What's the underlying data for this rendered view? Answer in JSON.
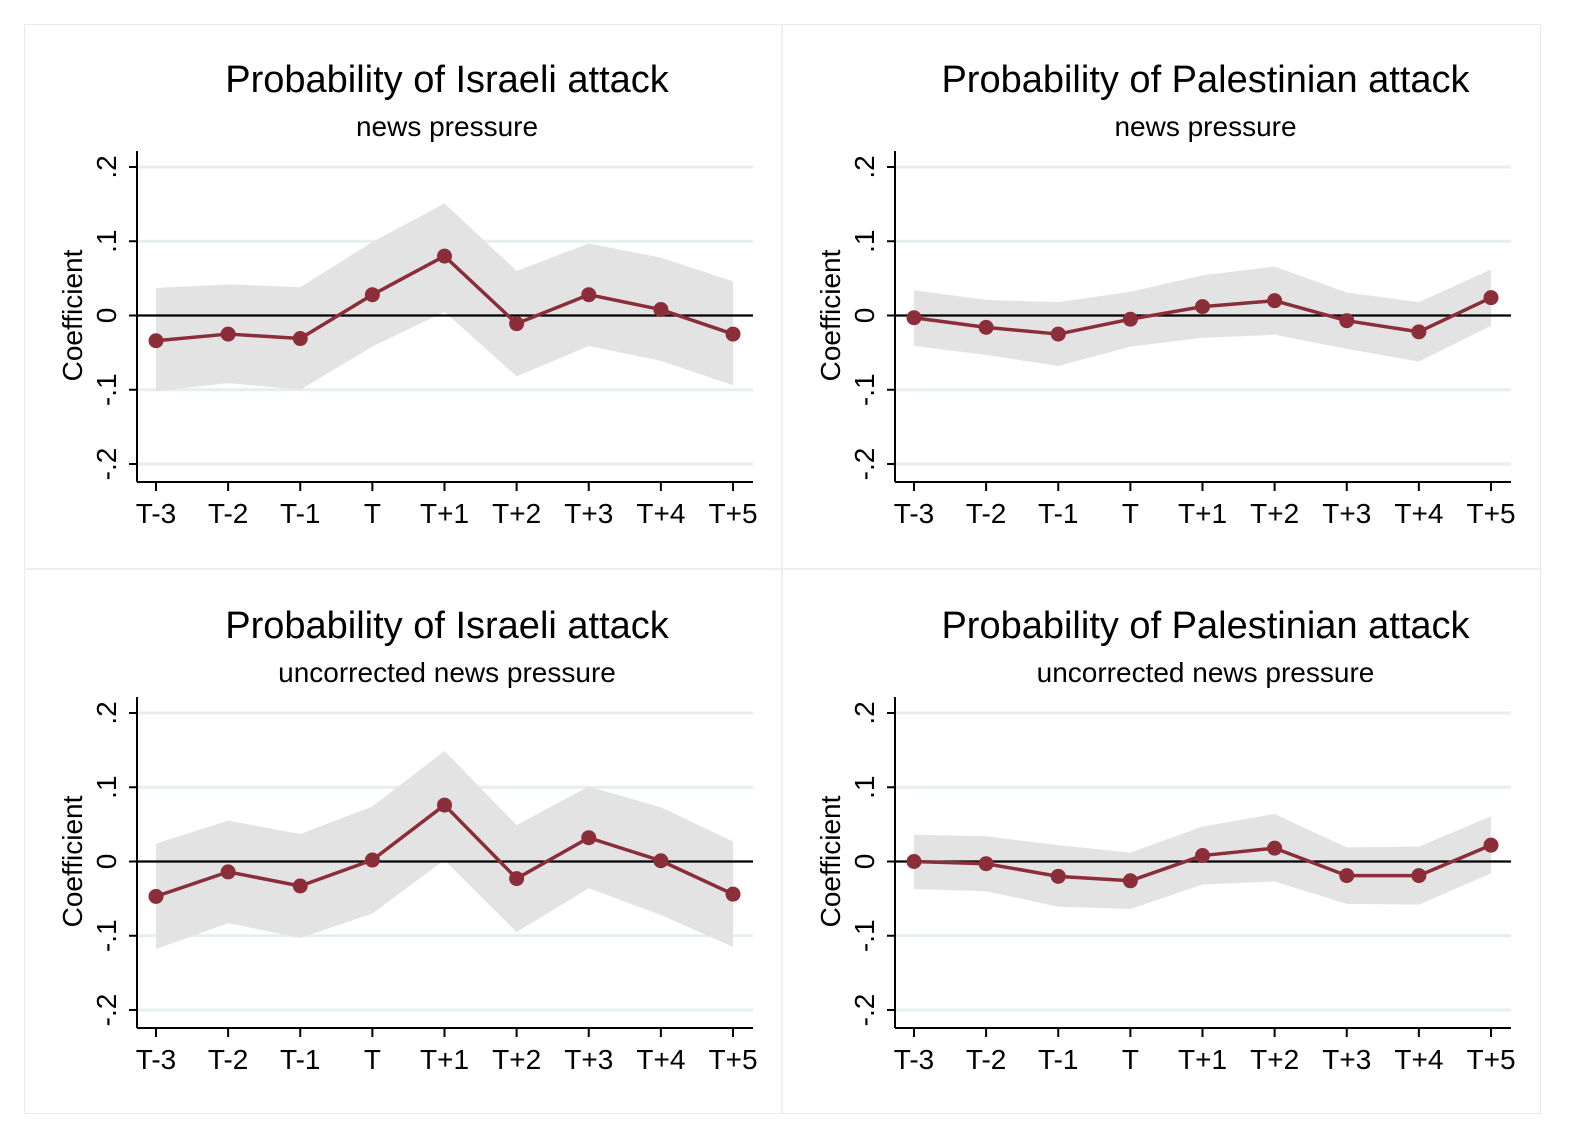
{
  "colors": {
    "line": "#8b2e3a",
    "band": "#e3e3e3",
    "grid": "#e6eef1",
    "axis": "#000000",
    "background": "#ffffff"
  },
  "chart_data": [
    {
      "type": "line",
      "title": "Probability of Israeli attack",
      "subtitle": "news pressure",
      "ylabel": "Coefficient",
      "xlabel": "",
      "categories": [
        "T-3",
        "T-2",
        "T-1",
        "T",
        "T+1",
        "T+2",
        "T+3",
        "T+4",
        "T+5"
      ],
      "ylim": [
        -0.2,
        0.2
      ],
      "yticks": [
        "-.2",
        "-.1",
        "0",
        ".1",
        ".2"
      ],
      "grid": true,
      "series": [
        {
          "values": [
            -0.034,
            -0.025,
            -0.031,
            0.028,
            0.08,
            -0.011,
            0.028,
            0.008,
            -0.025
          ]
        }
      ],
      "ci_lower": [
        -0.102,
        -0.091,
        -0.1,
        -0.042,
        0.005,
        -0.082,
        -0.041,
        -0.061,
        -0.094
      ],
      "ci_upper": [
        0.037,
        0.042,
        0.038,
        0.099,
        0.151,
        0.06,
        0.097,
        0.078,
        0.046
      ]
    },
    {
      "type": "line",
      "title": "Probability of Palestinian attack",
      "subtitle": "news pressure",
      "ylabel": "Coefficient",
      "xlabel": "",
      "categories": [
        "T-3",
        "T-2",
        "T-1",
        "T",
        "T+1",
        "T+2",
        "T+3",
        "T+4",
        "T+5"
      ],
      "ylim": [
        -0.2,
        0.2
      ],
      "yticks": [
        "-.2",
        "-.1",
        "0",
        ".1",
        ".2"
      ],
      "grid": true,
      "series": [
        {
          "values": [
            -0.003,
            -0.016,
            -0.025,
            -0.005,
            0.012,
            0.02,
            -0.007,
            -0.022,
            0.024
          ]
        }
      ],
      "ci_lower": [
        -0.041,
        -0.053,
        -0.068,
        -0.042,
        -0.03,
        -0.026,
        -0.045,
        -0.062,
        -0.014
      ],
      "ci_upper": [
        0.034,
        0.021,
        0.018,
        0.032,
        0.054,
        0.066,
        0.031,
        0.018,
        0.062
      ]
    },
    {
      "type": "line",
      "title": "Probability of Israeli attack",
      "subtitle": "uncorrected news pressure",
      "ylabel": "Coefficient",
      "xlabel": "",
      "categories": [
        "T-3",
        "T-2",
        "T-1",
        "T",
        "T+1",
        "T+2",
        "T+3",
        "T+4",
        "T+5"
      ],
      "ylim": [
        -0.2,
        0.2
      ],
      "yticks": [
        "-.2",
        "-.1",
        "0",
        ".1",
        ".2"
      ],
      "grid": true,
      "series": [
        {
          "values": [
            -0.047,
            -0.014,
            -0.033,
            0.002,
            0.076,
            -0.023,
            0.032,
            0.001,
            -0.044
          ]
        }
      ],
      "ci_lower": [
        -0.118,
        -0.083,
        -0.103,
        -0.07,
        0.002,
        -0.095,
        -0.036,
        -0.072,
        -0.115
      ],
      "ci_upper": [
        0.024,
        0.055,
        0.037,
        0.074,
        0.149,
        0.049,
        0.101,
        0.073,
        0.027
      ]
    },
    {
      "type": "line",
      "title": "Probability of Palestinian attack",
      "subtitle": "uncorrected news pressure",
      "ylabel": "Coefficient",
      "xlabel": "",
      "categories": [
        "T-3",
        "T-2",
        "T-1",
        "T",
        "T+1",
        "T+2",
        "T+3",
        "T+4",
        "T+5"
      ],
      "ylim": [
        -0.2,
        0.2
      ],
      "yticks": [
        "-.2",
        "-.1",
        "0",
        ".1",
        ".2"
      ],
      "grid": true,
      "series": [
        {
          "values": [
            0.0,
            -0.003,
            -0.02,
            -0.026,
            0.008,
            0.018,
            -0.019,
            -0.019,
            0.022
          ]
        }
      ],
      "ci_lower": [
        -0.037,
        -0.04,
        -0.061,
        -0.064,
        -0.031,
        -0.027,
        -0.057,
        -0.058,
        -0.016
      ],
      "ci_upper": [
        0.036,
        0.034,
        0.022,
        0.012,
        0.047,
        0.064,
        0.019,
        0.02,
        0.061
      ]
    }
  ]
}
